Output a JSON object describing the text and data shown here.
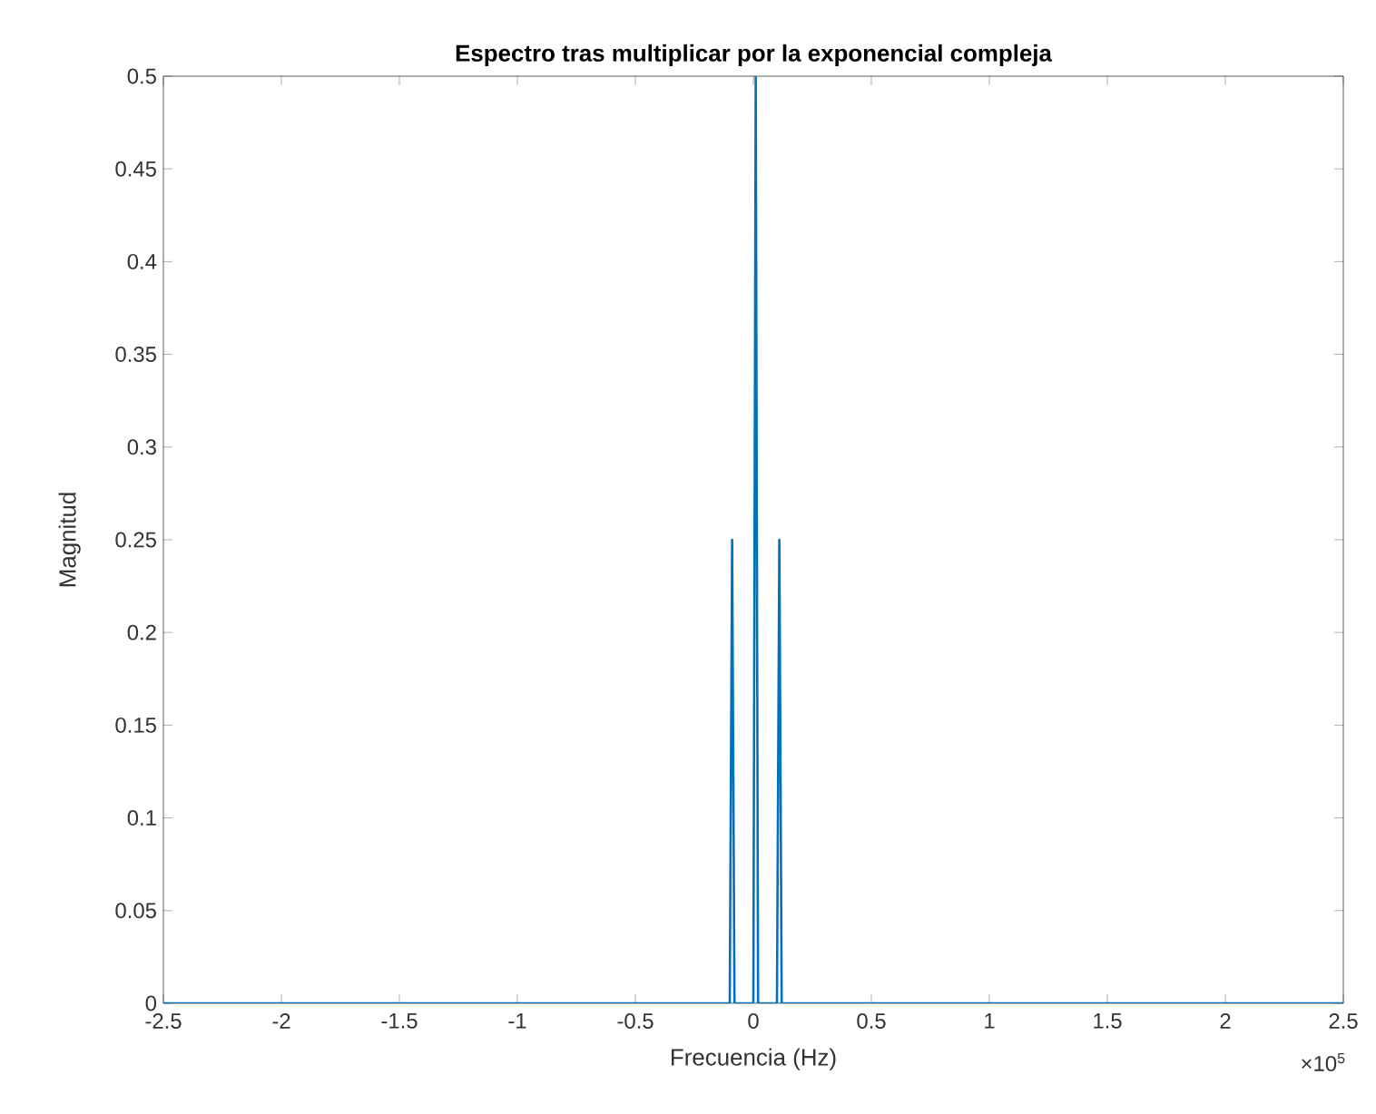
{
  "chart_data": {
    "type": "line",
    "title": "Espectro tras multiplicar por la exponencial compleja",
    "xlabel": "Frecuencia (Hz)",
    "ylabel": "Magnitud",
    "annotations": [
      "×10$^{5}$"
    ],
    "x": [
      -2.5,
      -0.1,
      -0.09,
      -0.08,
      0,
      0.01,
      0.02,
      0.1,
      0.11,
      0.12,
      2.5
    ],
    "series": [
      {
        "color": "#0072bd",
        "values": [
          0,
          0,
          0.25,
          0,
          0,
          0.5,
          0,
          0,
          0.25,
          0,
          0
        ]
      }
    ],
    "xlim": [
      -2.5,
      2.5
    ],
    "ylim": [
      0,
      0.5
    ],
    "xticks": [
      -2.5,
      -2,
      -1.5,
      -1,
      -0.5,
      0,
      0.5,
      1,
      1.5,
      2,
      2.5
    ],
    "yticks": [
      0,
      0.05,
      0.1,
      0.15,
      0.2,
      0.25,
      0.3,
      0.35,
      0.4,
      0.45,
      0.5
    ],
    "grid": false,
    "marker": "none",
    "line_style": "solid"
  }
}
